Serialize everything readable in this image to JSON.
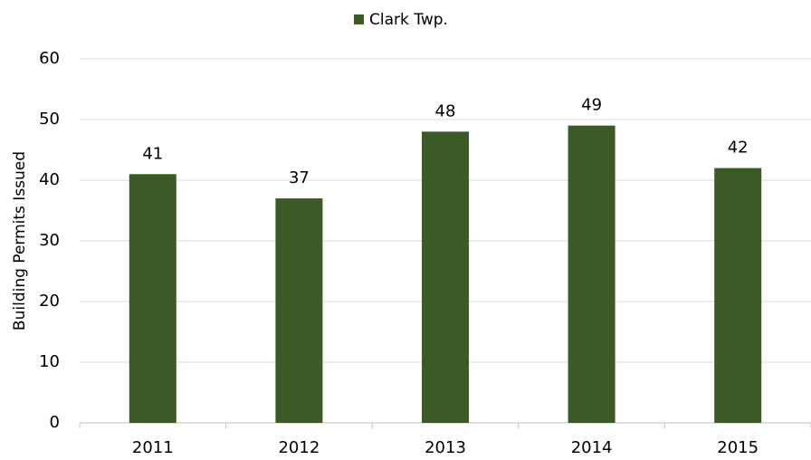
{
  "chart_data": {
    "type": "bar",
    "legend": "Clark Twp.",
    "y_label": "Building Permits Issued",
    "categories": [
      "2011",
      "2012",
      "2013",
      "2014",
      "2015"
    ],
    "values": [
      41,
      37,
      48,
      49,
      42
    ],
    "color": "#3b5a25",
    "ylim": [
      0,
      60
    ],
    "yticks": [
      0,
      10,
      20,
      30,
      40,
      50,
      60
    ],
    "grid": true,
    "legend_position": "top"
  }
}
